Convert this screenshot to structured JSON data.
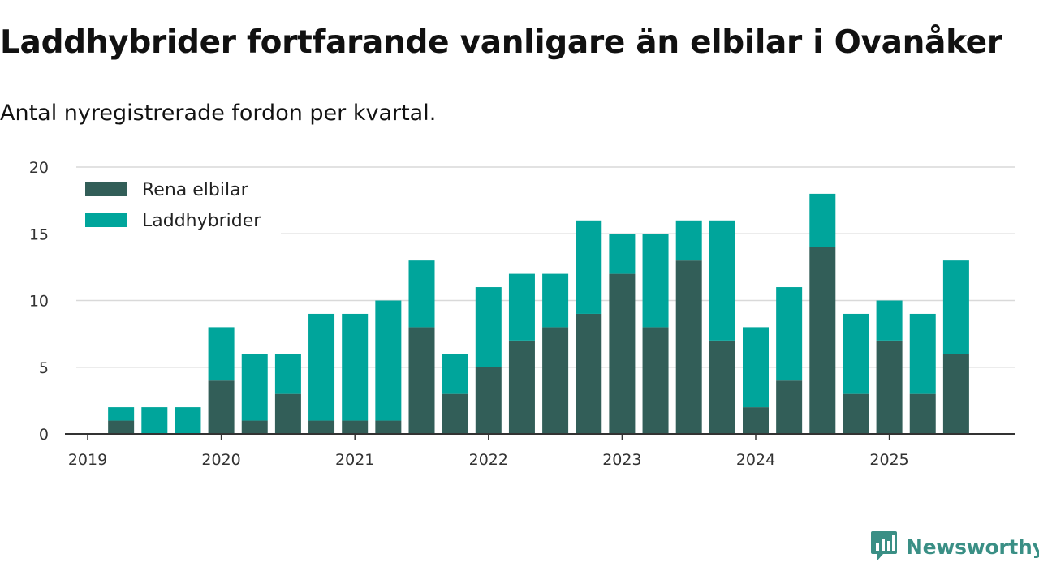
{
  "header": {
    "title": "Laddhybrider fortfarande vanligare än elbilar i Ovanåker",
    "subtitle": "Antal nyregistrerade fordon per kvartal."
  },
  "brand": {
    "name": "Newsworthy",
    "color": "#3a8f85",
    "icon": "newsworthy-logo-icon"
  },
  "colors": {
    "electric": "#325e58",
    "hybrid": "#00a59b",
    "grid": "#d9d9d9",
    "axis": "#333333"
  },
  "chart_data": {
    "type": "bar",
    "stacked": true,
    "title": "Laddhybrider fortfarande vanligare än elbilar i Ovanåker",
    "subtitle": "Antal nyregistrerade fordon per kvartal.",
    "xlabel": "",
    "ylabel": "",
    "ylim": [
      0,
      20
    ],
    "yticks": [
      0,
      5,
      10,
      15,
      20
    ],
    "year_labels": [
      "2019",
      "2020",
      "2021",
      "2022",
      "2023",
      "2024",
      "2025"
    ],
    "first_year": 2019,
    "categories": [
      "2019 Q2",
      "2019 Q3",
      "2019 Q4",
      "2020 Q1",
      "2020 Q2",
      "2020 Q3",
      "2020 Q4",
      "2021 Q1",
      "2021 Q2",
      "2021 Q3",
      "2021 Q4",
      "2022 Q1",
      "2022 Q2",
      "2022 Q3",
      "2022 Q4",
      "2023 Q1",
      "2023 Q2",
      "2023 Q3",
      "2023 Q4",
      "2024 Q1",
      "2024 Q2",
      "2024 Q3",
      "2024 Q4",
      "2025 Q1",
      "2025 Q2",
      "2025 Q3"
    ],
    "series": [
      {
        "name": "Rena elbilar",
        "color": "#325e58",
        "values": [
          1,
          0,
          0,
          4,
          1,
          3,
          1,
          1,
          1,
          8,
          3,
          5,
          7,
          8,
          9,
          12,
          8,
          13,
          7,
          2,
          4,
          14,
          3,
          7,
          3,
          6
        ]
      },
      {
        "name": "Laddhybrider",
        "color": "#00a59b",
        "values": [
          1,
          2,
          2,
          4,
          5,
          3,
          8,
          8,
          9,
          5,
          3,
          6,
          5,
          4,
          7,
          3,
          7,
          3,
          9,
          6,
          7,
          4,
          6,
          3,
          6,
          7
        ]
      }
    ],
    "legend": {
      "position": "top-left",
      "items": [
        "Rena elbilar",
        "Laddhybrider"
      ]
    },
    "grid": true
  }
}
